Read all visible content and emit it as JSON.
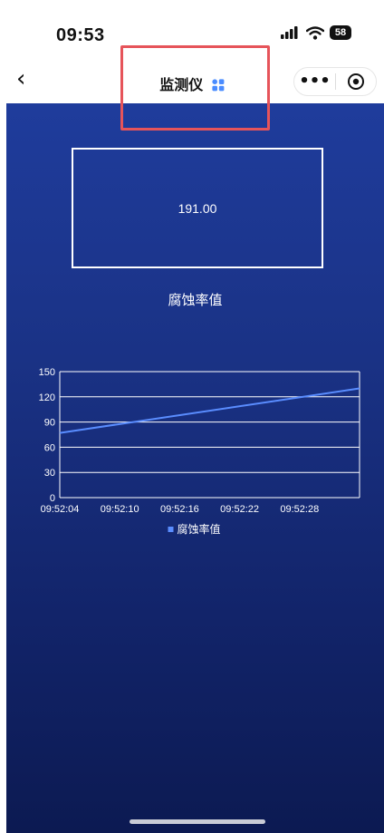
{
  "status_bar": {
    "time": "09:53",
    "battery": "58"
  },
  "nav": {
    "back_icon": "chevron-left-icon",
    "title": "监测仪",
    "title_icon": "app-grid-icon"
  },
  "monitor": {
    "value": "191.00",
    "label": "腐蚀率值"
  },
  "colors": {
    "accent": "#4a8cff",
    "highlight": "#e6545a",
    "bg_top": "#1f3c9c",
    "bg_bottom": "#0c1a52"
  },
  "chart_data": {
    "type": "line",
    "x": [
      "09:52:04",
      "09:52:10",
      "09:52:16",
      "09:52:22",
      "09:52:28"
    ],
    "y_ticks": [
      0,
      30,
      60,
      90,
      120,
      150
    ],
    "ylim": [
      0,
      150
    ],
    "x_range_sec": [
      0,
      30
    ],
    "series": [
      {
        "name": "腐蚀率值",
        "points": [
          [
            0,
            77
          ],
          [
            30,
            130
          ]
        ]
      }
    ],
    "legend": "bottom-center",
    "grid": true
  }
}
